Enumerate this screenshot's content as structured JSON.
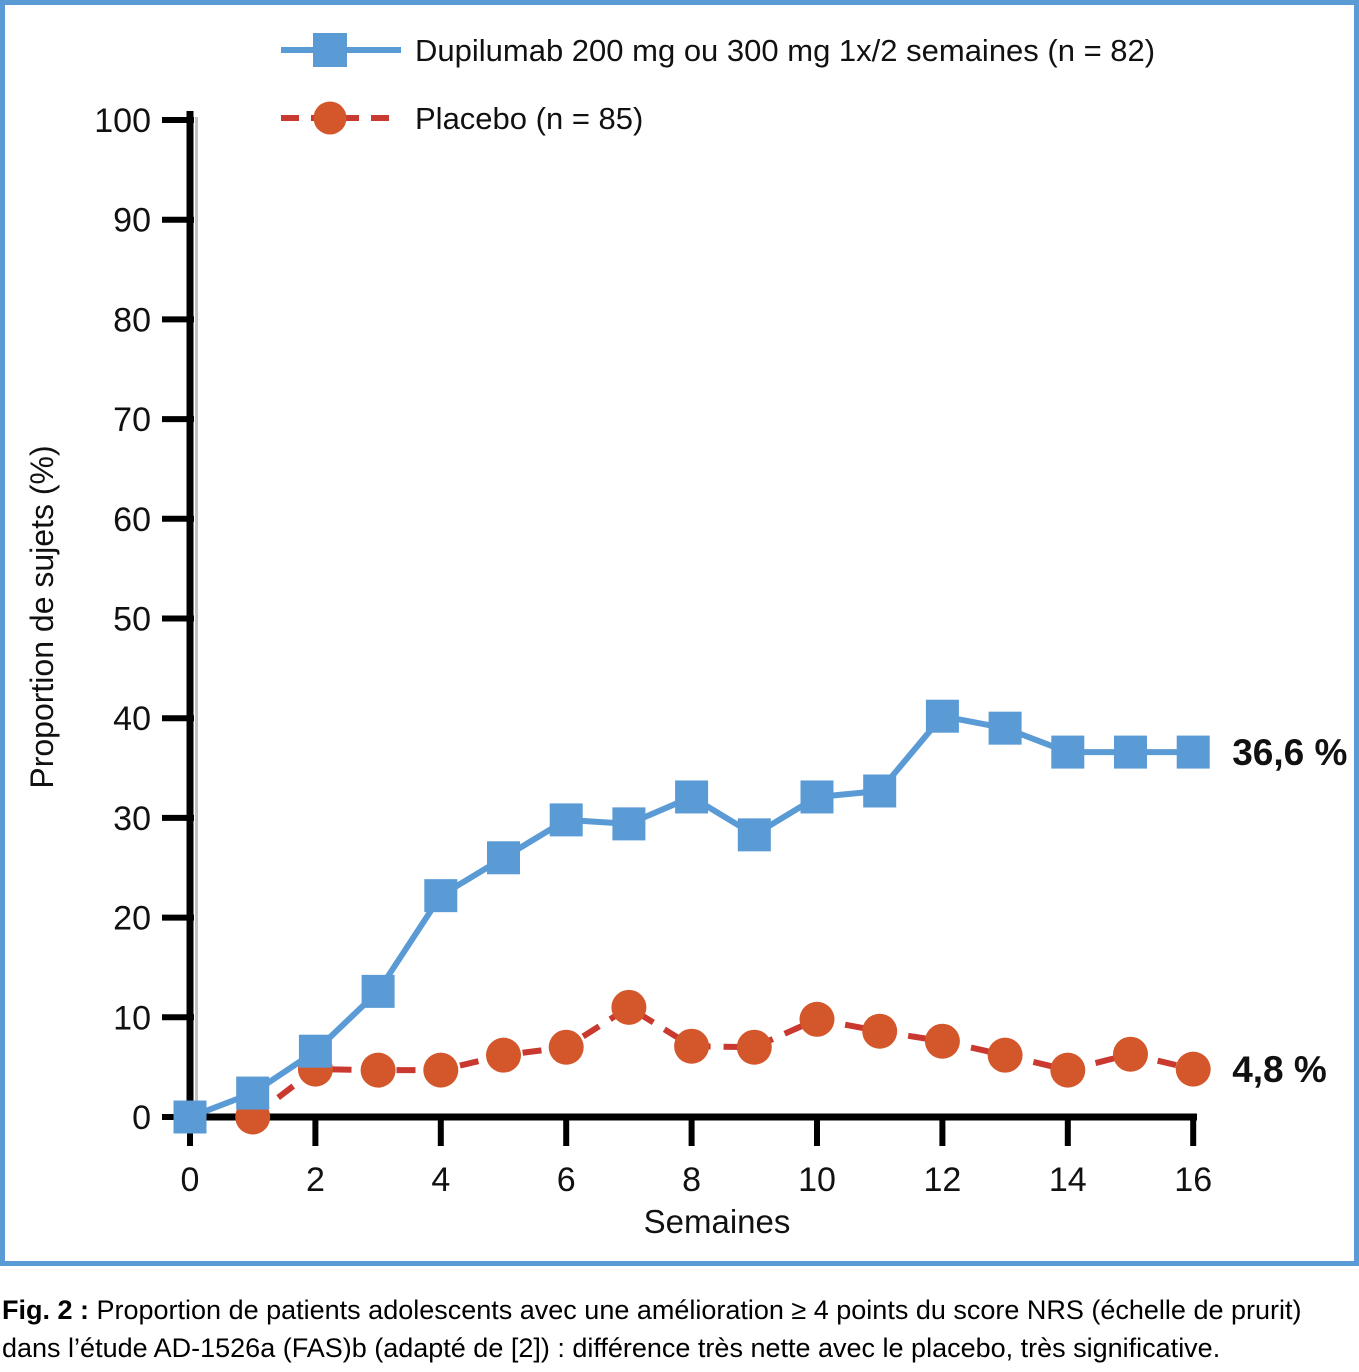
{
  "figure": {
    "border_color": "#5b9bd5",
    "background": "#ffffff"
  },
  "chart_data": {
    "type": "line",
    "title": "",
    "xlabel": "Semaines",
    "ylabel": "Proportion de sujets (%)",
    "xlim": [
      0,
      16
    ],
    "ylim": [
      0,
      100
    ],
    "xticks": [
      0,
      2,
      4,
      6,
      8,
      10,
      12,
      14,
      16
    ],
    "yticks": [
      0,
      10,
      20,
      30,
      40,
      50,
      60,
      70,
      80,
      90,
      100
    ],
    "grid": false,
    "legend_position": "top-left",
    "axis_color": "#000000",
    "series": [
      {
        "name": "Dupilumab 200 mg ou 300 mg 1x/2 semaines (n = 82)",
        "color": "#5b9bd5",
        "marker": "square",
        "line_style": "solid",
        "x": [
          0,
          1,
          2,
          3,
          4,
          5,
          6,
          7,
          8,
          9,
          10,
          11,
          12,
          13,
          14,
          15,
          16
        ],
        "values": [
          0,
          2.4,
          6.6,
          12.6,
          22.2,
          26.0,
          29.8,
          29.4,
          32.1,
          28.3,
          32.1,
          32.7,
          40.2,
          39.0,
          36.6,
          36.6,
          36.6
        ],
        "end_label": "36,6 %",
        "end_label_color": "#5b9bd5"
      },
      {
        "name": "Placebo (n = 85)",
        "color": "#c9392f",
        "marker_color": "#d4562b",
        "marker": "circle",
        "line_style": "dashed",
        "x": [
          1,
          2,
          3,
          4,
          5,
          6,
          7,
          8,
          9,
          10,
          11,
          12,
          13,
          14,
          15,
          16
        ],
        "values": [
          0,
          4.8,
          4.7,
          4.7,
          6.2,
          7.0,
          11.0,
          7.1,
          7.0,
          9.8,
          8.6,
          7.6,
          6.2,
          4.7,
          6.3,
          4.8
        ],
        "end_label": "4,8 %",
        "end_label_color": "#d2522e"
      }
    ]
  },
  "caption": {
    "label": "Fig. 2 :",
    "text": " Proportion de patients adolescents avec une amélioration ≥ 4 points du score NRS (échelle de prurit) dans l’étude AD-1526a (FAS)b (adapté de [2]) : différence très nette avec le placebo, très significative."
  }
}
